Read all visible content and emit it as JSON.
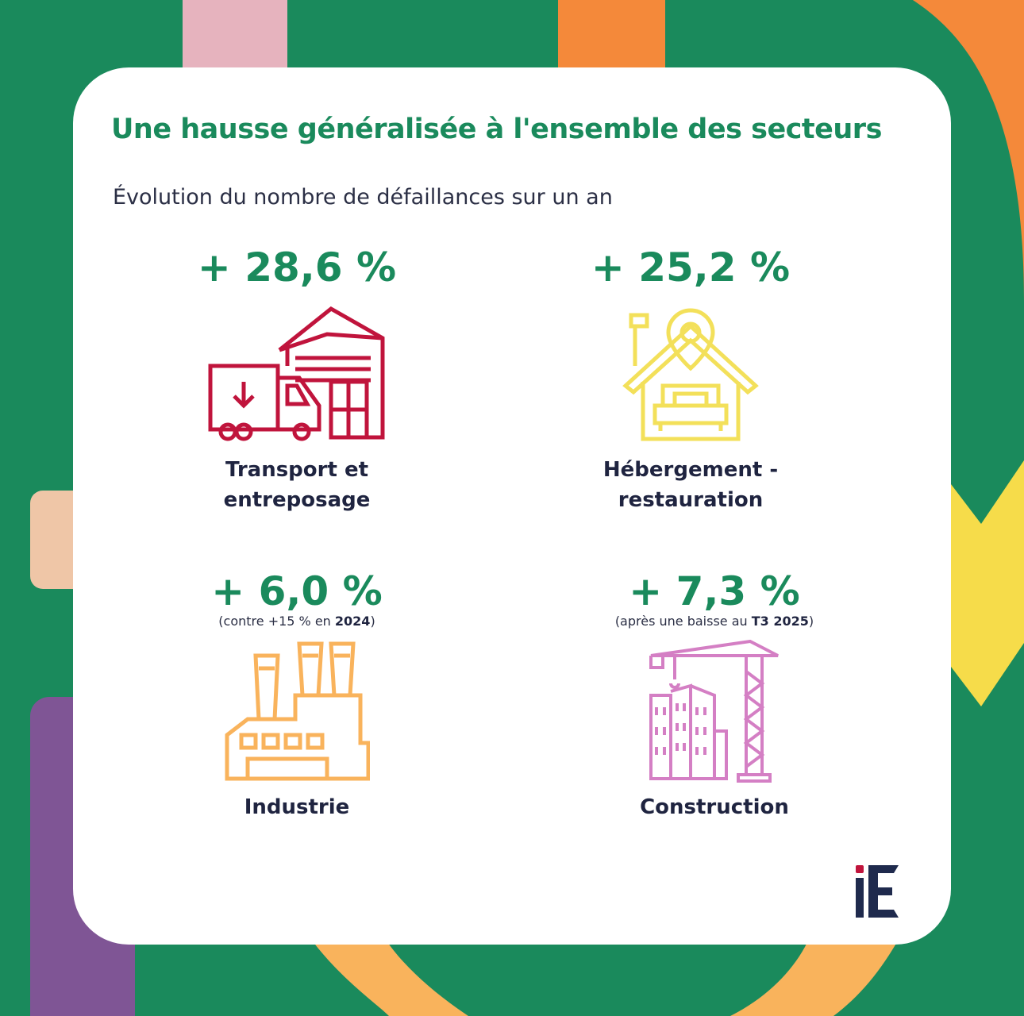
{
  "title": "Une hausse généralisée à l'ensemble des secteurs",
  "subtitle": "Évolution du nombre de défaillances sur un an",
  "colors": {
    "background": "#1a8a5c",
    "accent": "#1a8a5c",
    "text": "#1f2440"
  },
  "sectors": [
    {
      "value": "+ 28,6 %",
      "label_line1": "Transport et",
      "label_line2": "entreposage",
      "icon": "warehouse-truck-icon",
      "icon_color": "#c0143c"
    },
    {
      "value": "+ 25,2 %",
      "label_line1": "Hébergement -",
      "label_line2": "restauration",
      "icon": "house-bed-location-icon",
      "icon_color": "#f3e05a"
    },
    {
      "value": "+ 6,0 %",
      "note_prefix": "(contre +15 % en ",
      "note_bold": "2024",
      "note_suffix": ")",
      "label_line1": "Industrie",
      "icon": "factory-icon",
      "icon_color": "#f9b35c"
    },
    {
      "value": "+ 7,3 %",
      "note_prefix": "(après une baisse au ",
      "note_bold": "T3 2025",
      "note_suffix": ")",
      "label_line1": "Construction",
      "icon": "crane-buildings-icon",
      "icon_color": "#d47fc4"
    }
  ],
  "logo": "iE"
}
